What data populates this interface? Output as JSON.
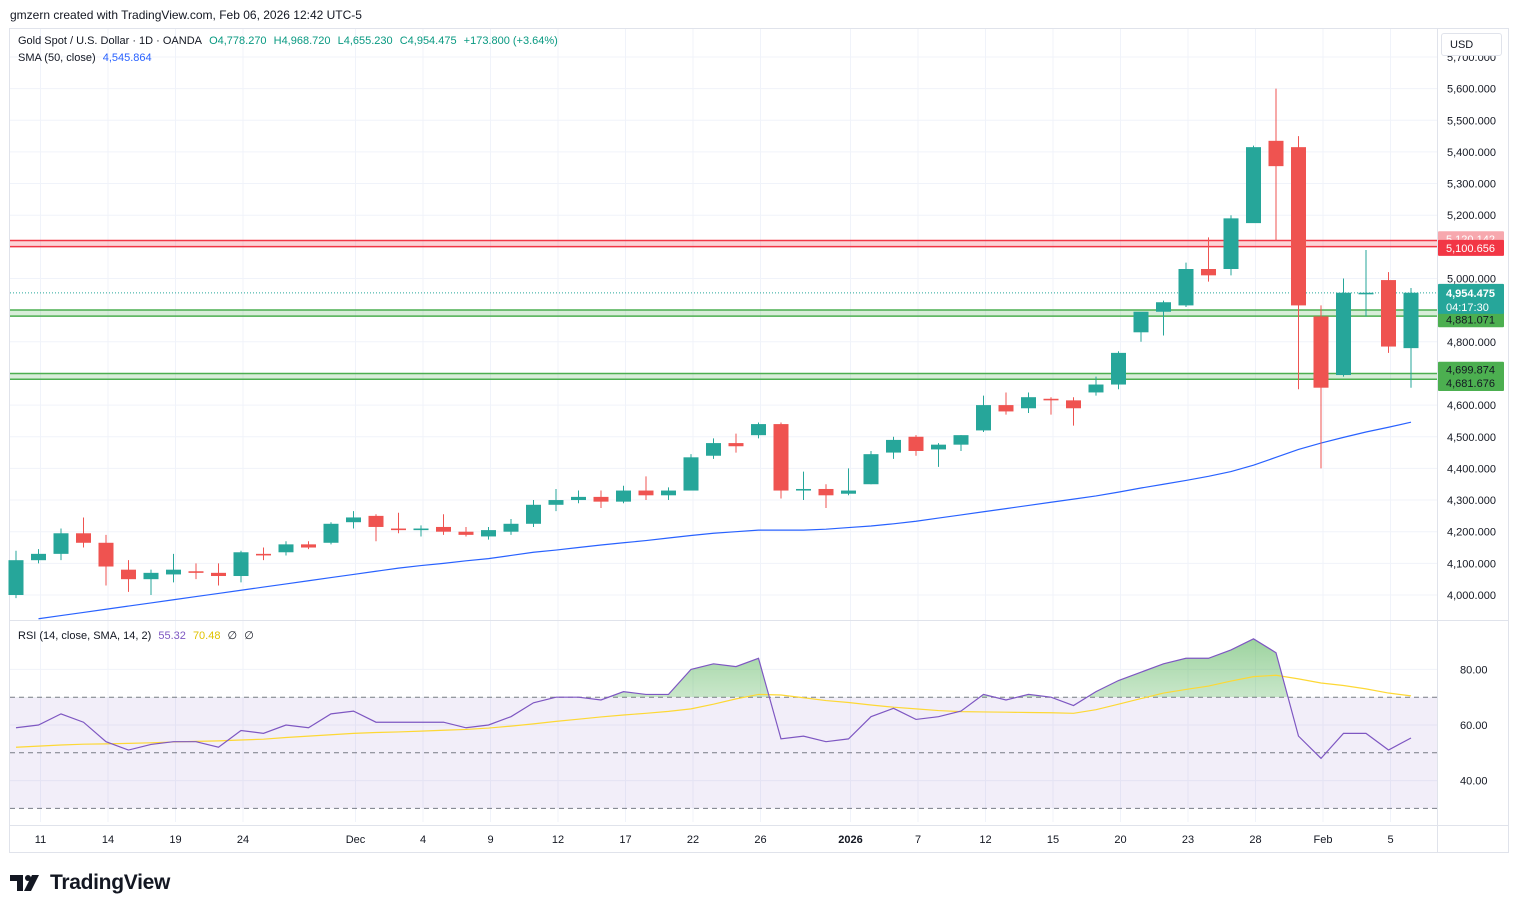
{
  "header": {
    "note": "gmzern created with TradingView.com, Feb 06, 2026 12:42 UTC-5"
  },
  "legend": {
    "symbol": "Gold Spot / U.S. Dollar · 1D · OANDA",
    "open": "O4,778.270",
    "high": "H4,968.720",
    "low": "L4,655.230",
    "close": "C4,954.475",
    "change": "+173.800 (+3.64%)",
    "sma_label": "SMA (50, close)",
    "sma_value": "4,545.864",
    "rsi_label": "RSI (14, close, SMA, 14, 2)",
    "rsi_value": "55.32",
    "rsi_ma_value": "70.48",
    "rsi_extra_1": "∅",
    "rsi_extra_2": "∅"
  },
  "currency_button": "USD",
  "brand": "TradingView",
  "colors": {
    "up": "#26a69a",
    "down": "#ef5350",
    "sma": "#2962ff",
    "rsi": "#7e57c2",
    "rsi_ma": "#fdd835",
    "resistance": "#f23645",
    "support": "#4caf50"
  },
  "chart_data": [
    {
      "type": "candlestick",
      "title": "Gold Spot / U.S. Dollar · 1D · OANDA",
      "ylim": [
        3920,
        5780
      ],
      "y_ticks": [
        4000,
        4100,
        4200,
        4300,
        4400,
        4500,
        4600,
        4700,
        4800,
        4900,
        5000,
        5100,
        5200,
        5300,
        5400,
        5500,
        5600,
        5700
      ],
      "y_tick_labels": [
        "4,000.000",
        "4,100.000",
        "4,200.000",
        "4,300.000",
        "4,400.000",
        "4,500.000",
        "4,600.000",
        "4,700.000",
        "4,800.000",
        "4,900.000",
        "5,000.000",
        "5,100.000",
        "5,200.000",
        "5,300.000",
        "5,400.000",
        "5,500.000",
        "5,600.000",
        "5,700.000"
      ],
      "x_tick_labels": [
        "11",
        "14",
        "19",
        "24",
        "Dec",
        "4",
        "9",
        "12",
        "17",
        "22",
        "26",
        "2026",
        "7",
        "12",
        "15",
        "20",
        "23",
        "28",
        "Feb",
        "5"
      ],
      "x_tick_index": [
        1,
        4,
        7,
        10,
        15,
        18,
        21,
        24,
        27,
        30,
        33,
        37,
        40,
        43,
        46,
        49,
        52,
        55,
        58,
        61
      ],
      "dates": [
        "Nov 10",
        "Nov 11",
        "Nov 12",
        "Nov 13",
        "Nov 14",
        "Nov 17",
        "Nov 18",
        "Nov 19",
        "Nov 20",
        "Nov 21",
        "Nov 24",
        "Nov 25",
        "Nov 26",
        "Nov 27",
        "Nov 28",
        "Dec 1",
        "Dec 2",
        "Dec 3",
        "Dec 4",
        "Dec 5",
        "Dec 8",
        "Dec 9",
        "Dec 10",
        "Dec 11",
        "Dec 12",
        "Dec 15",
        "Dec 16",
        "Dec 17",
        "Dec 18",
        "Dec 19",
        "Dec 22",
        "Dec 23",
        "Dec 24",
        "Dec 26",
        "Dec 29",
        "Dec 30",
        "Dec 31",
        "Jan 2",
        "Jan 5",
        "Jan 6",
        "Jan 7",
        "Jan 8",
        "Jan 9",
        "Jan 12",
        "Jan 13",
        "Jan 14",
        "Jan 15",
        "Jan 16",
        "Jan 19",
        "Jan 20",
        "Jan 21",
        "Jan 22",
        "Jan 23",
        "Jan 26",
        "Jan 27",
        "Jan 28",
        "Jan 29",
        "Jan 30",
        "Feb 2",
        "Feb 3",
        "Feb 4",
        "Feb 5",
        "Feb 6"
      ],
      "ohlc": [
        [
          4000,
          4140,
          3990,
          4110
        ],
        [
          4110,
          4145,
          4100,
          4130
        ],
        [
          4130,
          4210,
          4110,
          4195
        ],
        [
          4195,
          4245,
          4150,
          4165
        ],
        [
          4165,
          4190,
          4030,
          4090
        ],
        [
          4080,
          4110,
          4010,
          4050
        ],
        [
          4050,
          4080,
          4000,
          4070
        ],
        [
          4065,
          4130,
          4040,
          4080
        ],
        [
          4075,
          4100,
          4050,
          4070
        ],
        [
          4070,
          4100,
          4030,
          4060
        ],
        [
          4060,
          4140,
          4040,
          4135
        ],
        [
          4130,
          4150,
          4110,
          4125
        ],
        [
          4135,
          4170,
          4125,
          4160
        ],
        [
          4160,
          4170,
          4145,
          4150
        ],
        [
          4165,
          4230,
          4160,
          4225
        ],
        [
          4230,
          4265,
          4210,
          4245
        ],
        [
          4250,
          4255,
          4170,
          4215
        ],
        [
          4210,
          4260,
          4195,
          4205
        ],
        [
          4205,
          4220,
          4185,
          4210
        ],
        [
          4215,
          4255,
          4190,
          4200
        ],
        [
          4200,
          4215,
          4185,
          4190
        ],
        [
          4185,
          4215,
          4175,
          4205
        ],
        [
          4200,
          4240,
          4190,
          4225
        ],
        [
          4225,
          4300,
          4215,
          4285
        ],
        [
          4285,
          4335,
          4265,
          4300
        ],
        [
          4300,
          4330,
          4290,
          4310
        ],
        [
          4310,
          4330,
          4275,
          4295
        ],
        [
          4295,
          4345,
          4290,
          4330
        ],
        [
          4330,
          4375,
          4300,
          4315
        ],
        [
          4315,
          4340,
          4300,
          4330
        ],
        [
          4330,
          4445,
          4330,
          4435
        ],
        [
          4440,
          4495,
          4430,
          4480
        ],
        [
          4480,
          4510,
          4450,
          4470
        ],
        [
          4505,
          4545,
          4495,
          4540
        ],
        [
          4540,
          4545,
          4305,
          4330
        ],
        [
          4330,
          4390,
          4300,
          4335
        ],
        [
          4335,
          4350,
          4275,
          4315
        ],
        [
          4320,
          4400,
          4315,
          4330
        ],
        [
          4350,
          4455,
          4350,
          4445
        ],
        [
          4450,
          4500,
          4430,
          4490
        ],
        [
          4500,
          4505,
          4440,
          4455
        ],
        [
          4460,
          4480,
          4405,
          4475
        ],
        [
          4475,
          4505,
          4455,
          4505
        ],
        [
          4520,
          4630,
          4515,
          4600
        ],
        [
          4600,
          4640,
          4570,
          4580
        ],
        [
          4590,
          4640,
          4575,
          4625
        ],
        [
          4620,
          4625,
          4570,
          4615
        ],
        [
          4615,
          4625,
          4535,
          4590
        ],
        [
          4640,
          4690,
          4630,
          4665
        ],
        [
          4665,
          4770,
          4650,
          4765
        ],
        [
          4830,
          4880,
          4800,
          4895
        ],
        [
          4895,
          4930,
          4820,
          4925
        ],
        [
          4915,
          5050,
          4910,
          5030
        ],
        [
          5030,
          5130,
          4990,
          5010
        ],
        [
          5030,
          5200,
          5010,
          5190
        ],
        [
          5175,
          5420,
          5180,
          5415
        ],
        [
          5435,
          5600,
          5120,
          5355
        ],
        [
          5415,
          5450,
          4650,
          4915
        ],
        [
          4880,
          4915,
          4400,
          4655
        ],
        [
          4695,
          5000,
          4690,
          4955
        ],
        [
          4950,
          5090,
          4880,
          4955
        ],
        [
          4995,
          5020,
          4765,
          4785
        ],
        [
          4780,
          4970,
          4655,
          4955
        ]
      ],
      "sma": {
        "name": "SMA (50, close)",
        "values": [
          3920,
          3925,
          3935,
          3945,
          3955,
          3965,
          3975,
          3985,
          3995,
          4005,
          4015,
          4025,
          4035,
          4045,
          4055,
          4065,
          4075,
          4085,
          4093,
          4100,
          4108,
          4115,
          4125,
          4135,
          4142,
          4150,
          4158,
          4165,
          4172,
          4180,
          4188,
          4195,
          4200,
          4205,
          4205,
          4205,
          4208,
          4213,
          4218,
          4225,
          4233,
          4243,
          4253,
          4263,
          4273,
          4283,
          4293,
          4303,
          4313,
          4325,
          4338,
          4350,
          4362,
          4375,
          4390,
          4410,
          4435,
          4460,
          4480,
          4498,
          4515,
          4530,
          4546
        ]
      },
      "levels": {
        "resistance": [
          "5,120.142",
          "5,100.656"
        ],
        "support_upper": [
          "4,900.654",
          "4,881.071"
        ],
        "support_lower": [
          "4,699.874",
          "4,681.676"
        ],
        "resistance_values": [
          5120.142,
          5100.656
        ],
        "support_upper_values": [
          4900.654,
          4881.071
        ],
        "support_lower_values": [
          4699.874,
          4681.676
        ]
      },
      "last_price": {
        "label": "4,954.475",
        "value": 4954.475,
        "countdown": "04:17:30"
      }
    },
    {
      "type": "line",
      "title": "RSI (14, close, SMA, 14, 2)",
      "ylim": [
        25,
        96
      ],
      "y_ticks": [
        40,
        60,
        80
      ],
      "y_tick_labels": [
        "40.00",
        "60.00",
        "80.00"
      ],
      "bands": {
        "upper": 70,
        "middle": 50,
        "lower": 30
      },
      "series": [
        {
          "name": "RSI",
          "values": [
            59,
            60,
            64,
            61,
            54,
            51,
            53,
            54,
            54,
            52,
            58,
            57,
            60,
            59,
            64,
            65,
            61,
            61,
            61,
            61,
            59,
            60,
            63,
            68,
            70,
            70,
            69,
            72,
            71,
            71,
            80,
            82,
            81,
            84,
            55,
            56,
            54,
            55,
            63,
            66,
            62,
            63,
            65,
            71,
            69,
            71,
            70,
            67,
            72,
            76,
            79,
            82,
            84,
            84,
            87,
            91,
            86,
            56,
            48,
            57,
            57,
            51,
            55.32
          ]
        },
        {
          "name": "RSI MA",
          "values": [
            52,
            52.4,
            52.8,
            53.1,
            53.2,
            53.4,
            53.6,
            53.9,
            54.1,
            54.3,
            54.6,
            54.9,
            55.5,
            56,
            56.5,
            57,
            57.3,
            57.5,
            57.8,
            58.1,
            58.4,
            58.9,
            59.6,
            60.4,
            61.3,
            62.1,
            62.9,
            63.6,
            64.2,
            64.9,
            65.8,
            67.5,
            69.4,
            71,
            70.8,
            69.8,
            68.8,
            68.1,
            67.2,
            66.4,
            65.8,
            65.2,
            64.8,
            64.7,
            64.6,
            64.5,
            64.4,
            64.2,
            65.5,
            67.5,
            69.5,
            71.5,
            72.8,
            74,
            75.8,
            77.4,
            77.9,
            76.6,
            75.1,
            74.2,
            73,
            71.5,
            70.48
          ]
        }
      ]
    }
  ]
}
